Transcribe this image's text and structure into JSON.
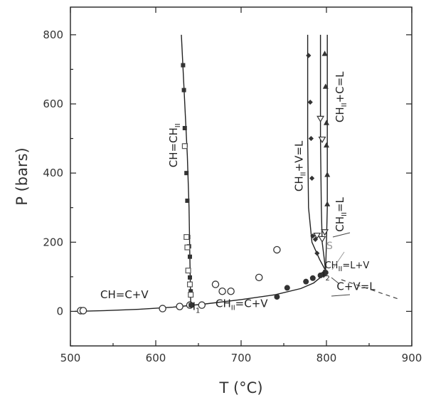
{
  "chart_data": {
    "type": "scatter",
    "xlabel": "T (°C)",
    "ylabel": "P (bars)",
    "xlim": [
      500,
      900
    ],
    "ylim": [
      -100,
      880
    ],
    "xticks": [
      500,
      600,
      700,
      800,
      900
    ],
    "yticks": [
      0,
      200,
      400,
      600,
      800
    ],
    "grid": false,
    "legend": "none",
    "annotations": [
      {
        "text": "CH=C+V",
        "x": 535,
        "y": 38
      },
      {
        "text": "CH",
        "sub": "II",
        "rest": "=C+V",
        "x": 670,
        "y": 12
      },
      {
        "text": "C+V=L",
        "x": 812,
        "y": 62
      },
      {
        "text": "CH",
        "sub": "II",
        "rest": "=L+V",
        "x": 798,
        "y": 124
      },
      {
        "text": "I",
        "sub": "1",
        "x": 643,
        "y": 4
      },
      {
        "text": "I",
        "sub": "2",
        "x": 795,
        "y": 98
      },
      {
        "text": "S",
        "x": 800,
        "y": 180
      },
      {
        "text": "CH=CH",
        "sub": "II",
        "x": 625,
        "y": 480
      },
      {
        "text": "CH",
        "sub": "II",
        "rest": "+V=L",
        "x": 772,
        "y": 420
      },
      {
        "text": "CH",
        "sub": "II",
        "rest": "+C=L",
        "x": 820,
        "y": 620
      },
      {
        "text": "CH",
        "sub": "II",
        "rest": "=L",
        "x": 820,
        "y": 280
      }
    ],
    "series": [
      {
        "marker": "open-circle",
        "x": [
          512,
          515,
          608,
          628,
          640,
          654,
          670,
          678,
          688,
          721,
          742
        ],
        "y": [
          2,
          2,
          8,
          14,
          18,
          18,
          78,
          58,
          58,
          98,
          178
        ]
      },
      {
        "marker": "filled-circle",
        "x": [
          642,
          742,
          754,
          776,
          784,
          793,
          797,
          799
        ],
        "y": [
          18,
          42,
          68,
          86,
          96,
          104,
          108,
          112
        ]
      },
      {
        "marker": "filled-square",
        "x": [
          632,
          633,
          634,
          635,
          636,
          637,
          638,
          639,
          640,
          640,
          641,
          641
        ],
        "y": [
          712,
          640,
          530,
          480,
          400,
          320,
          215,
          188,
          158,
          98,
          58,
          18
        ]
      },
      {
        "marker": "open-square",
        "x": [
          634,
          636,
          637,
          638,
          640,
          641
        ],
        "y": [
          478,
          215,
          185,
          118,
          78,
          48
        ]
      },
      {
        "marker": "filled-diamond",
        "x": [
          779,
          781,
          782,
          783,
          784,
          787,
          789
        ],
        "y": [
          740,
          605,
          500,
          385,
          218,
          208,
          168
        ]
      },
      {
        "marker": "open-inverted-triangle",
        "x": [
          789,
          793,
          795
        ],
        "y": [
          220,
          558,
          498
        ]
      },
      {
        "marker": "filled-triangle",
        "x": [
          798,
          799,
          800,
          800,
          801,
          801
        ],
        "y": [
          745,
          650,
          545,
          480,
          395,
          310
        ]
      },
      {
        "marker": "open-inverted-triangle-2",
        "x": [
          795,
          798
        ],
        "y": [
          210,
          230
        ]
      }
    ],
    "curves": [
      {
        "name": "CH=C+V / CHII=C+V",
        "x": [
          505,
          540,
          580,
          620,
          660,
          700,
          740,
          770,
          785,
          792,
          796,
          799
        ],
        "y": [
          0,
          2,
          6,
          12,
          22,
          34,
          48,
          66,
          82,
          96,
          108,
          118
        ]
      },
      {
        "name": "CH=CHII",
        "x": [
          641,
          640,
          639,
          637,
          634,
          630
        ],
        "y": [
          18,
          150,
          300,
          450,
          600,
          800
        ]
      },
      {
        "name": "CHII+V=L",
        "x": [
          799,
          792,
          783,
          779,
          778,
          778
        ],
        "y": [
          118,
          150,
          200,
          300,
          500,
          800
        ]
      },
      {
        "name": "CHII=L",
        "x": [
          799,
          797,
          795,
          794,
          793,
          793
        ],
        "y": [
          118,
          160,
          200,
          300,
          500,
          800
        ]
      },
      {
        "name": "CHII+C=L",
        "x": [
          799,
          800,
          801,
          801,
          801
        ],
        "y": [
          118,
          200,
          300,
          500,
          800
        ]
      }
    ]
  }
}
